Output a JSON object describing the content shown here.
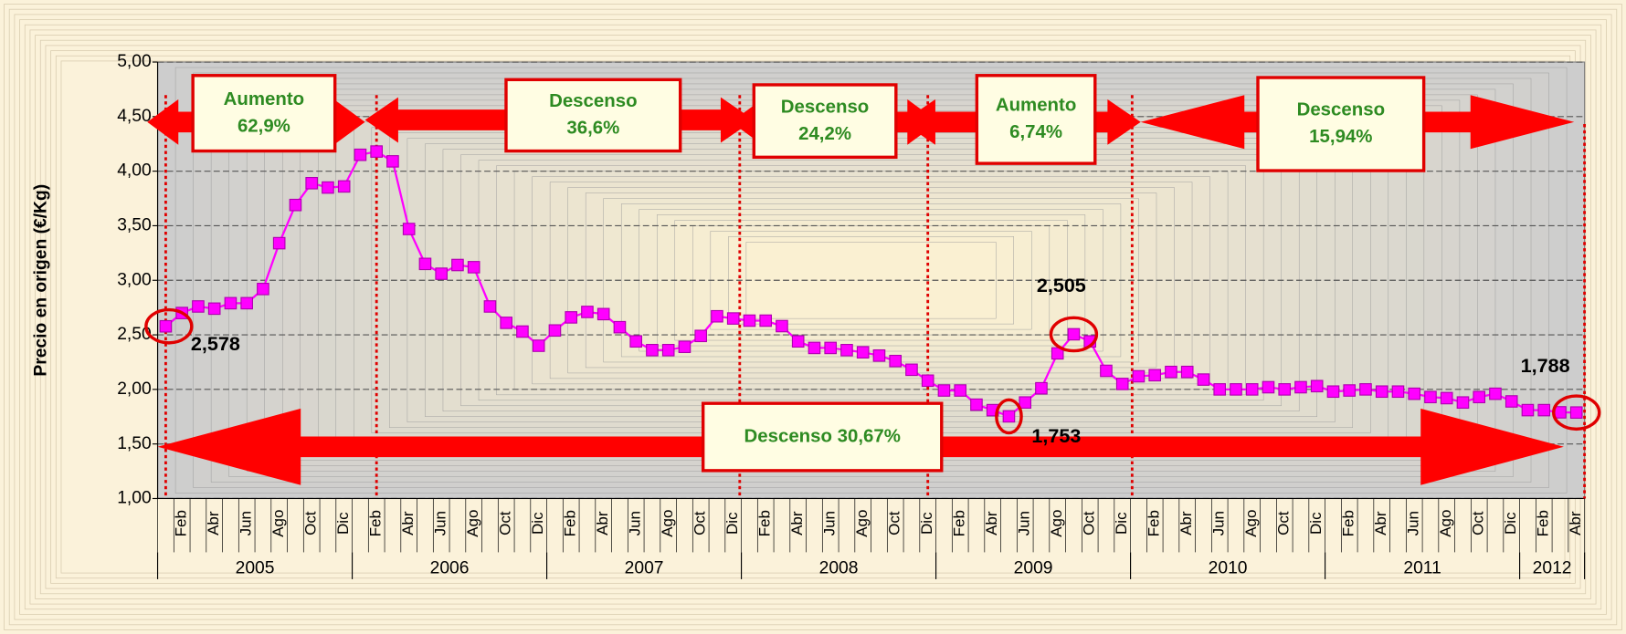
{
  "chart_data": {
    "type": "line",
    "y_label": "Precio en origen (€/Kg)",
    "ylim": [
      1,
      5
    ],
    "yticks": [
      {
        "value": 1,
        "label": "1,00"
      },
      {
        "value": 1.5,
        "label": "1,50"
      },
      {
        "value": 2,
        "label": "2,00"
      },
      {
        "value": 2.5,
        "label": "2,50"
      },
      {
        "value": 3,
        "label": "3,00"
      },
      {
        "value": 3.5,
        "label": "3,50"
      },
      {
        "value": 4,
        "label": "4,00"
      },
      {
        "value": 4.5,
        "label": "4,50"
      },
      {
        "value": 5,
        "label": "5,00"
      }
    ],
    "grid": true,
    "categories": [
      null,
      "Feb",
      null,
      "Abr",
      null,
      "Jun",
      null,
      "Ago",
      null,
      "Oct",
      null,
      "Dic",
      null,
      "Feb",
      null,
      "Abr",
      null,
      "Jun",
      null,
      "Ago",
      null,
      "Oct",
      null,
      "Dic",
      null,
      "Feb",
      null,
      "Abr",
      null,
      "Jun",
      null,
      "Ago",
      null,
      "Oct",
      null,
      "Dic",
      null,
      "Feb",
      null,
      "Abr",
      null,
      "Jun",
      null,
      "Ago",
      null,
      "Oct",
      null,
      "Dic",
      null,
      "Feb",
      null,
      "Abr",
      null,
      "Jun",
      null,
      "Ago",
      null,
      "Oct",
      null,
      "Dic",
      null,
      "Feb",
      null,
      "Abr",
      null,
      "Jun",
      null,
      "Ago",
      null,
      "Oct",
      null,
      "Dic",
      null,
      "Feb",
      null,
      "Abr",
      null,
      "Jun",
      null,
      "Ago",
      null,
      "Oct",
      null,
      "Dic",
      null,
      "Feb",
      null,
      "Abr"
    ],
    "years": [
      "2005",
      "2006",
      "2007",
      "2008",
      "2009",
      "2010",
      "2011",
      "2012"
    ],
    "series": [
      {
        "color": "#ff00ff",
        "values": [
          2.578,
          2.7,
          2.76,
          2.74,
          2.79,
          2.79,
          2.92,
          3.34,
          3.69,
          3.89,
          3.85,
          3.86,
          4.15,
          4.18,
          4.09,
          3.47,
          3.15,
          3.06,
          3.14,
          3.12,
          2.76,
          2.61,
          2.53,
          2.4,
          2.54,
          2.66,
          2.71,
          2.69,
          2.57,
          2.44,
          2.36,
          2.36,
          2.39,
          2.49,
          2.67,
          2.65,
          2.63,
          2.63,
          2.58,
          2.44,
          2.38,
          2.38,
          2.36,
          2.34,
          2.31,
          2.26,
          2.18,
          2.08,
          1.99,
          1.99,
          1.86,
          1.81,
          1.753,
          1.88,
          2.01,
          2.33,
          2.505,
          2.44,
          2.17,
          2.05,
          2.12,
          2.13,
          2.16,
          2.16,
          2.09,
          2.0,
          2.0,
          2.0,
          2.02,
          2.0,
          2.02,
          2.03,
          1.98,
          1.99,
          2.0,
          1.98,
          1.98,
          1.96,
          1.93,
          1.92,
          1.88,
          1.93,
          1.96,
          1.89,
          1.81,
          1.81,
          1.79,
          1.788
        ],
        "value_labels": [
          "2,578",
          null,
          null,
          null,
          null,
          null,
          null,
          null,
          null,
          null,
          null,
          null,
          null,
          null,
          null,
          null,
          null,
          null,
          null,
          null,
          null,
          null,
          null,
          null,
          null,
          null,
          null,
          null,
          null,
          null,
          null,
          null,
          null,
          null,
          null,
          null,
          null,
          null,
          null,
          null,
          null,
          null,
          null,
          null,
          null,
          null,
          null,
          null,
          null,
          null,
          null,
          null,
          "1,753",
          null,
          null,
          null,
          "2,505",
          null,
          null,
          null,
          null,
          null,
          null,
          null,
          null,
          null,
          null,
          null,
          null,
          null,
          null,
          null,
          null,
          null,
          null,
          null,
          null,
          null,
          null,
          null,
          null,
          null,
          null,
          null,
          null,
          null,
          null,
          "1,788"
        ]
      }
    ],
    "annotations": [
      {
        "lines": [
          "Aumento",
          "62,9%"
        ]
      },
      {
        "lines": [
          "Descenso",
          "36,6%"
        ]
      },
      {
        "lines": [
          "Descenso",
          "24,2%"
        ]
      },
      {
        "lines": [
          "Aumento",
          "6,74%"
        ]
      },
      {
        "lines": [
          "Descenso",
          "15,94%"
        ]
      },
      {
        "lines": [
          "Descenso 30,67%"
        ]
      }
    ]
  }
}
